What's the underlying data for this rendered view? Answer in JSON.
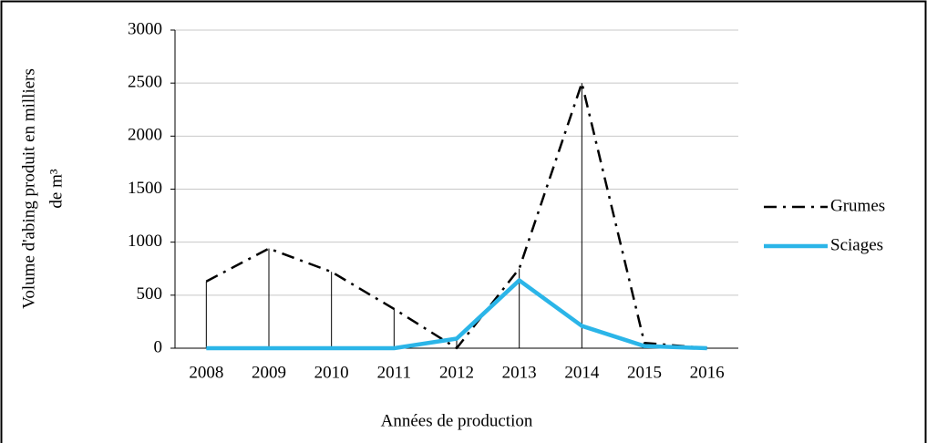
{
  "chart_data": {
    "type": "line",
    "y_label_lines": [
      "Volume d'abing produit en milliers",
      "de m³"
    ],
    "x_label": "Années de production",
    "categories": [
      "2008",
      "2009",
      "2010",
      "2011",
      "2012",
      "2013",
      "2014",
      "2015",
      "2016"
    ],
    "series": [
      {
        "name": "Grumes",
        "color": "#000000",
        "style": "dash-dot",
        "values": [
          630,
          940,
          720,
          370,
          0,
          750,
          2500,
          50,
          0
        ]
      },
      {
        "name": "Sciages",
        "color": "#2bb5e8",
        "style": "solid",
        "values": [
          0,
          0,
          0,
          0,
          90,
          640,
          210,
          20,
          0
        ]
      }
    ],
    "drop_lines": true,
    "ylim": [
      0,
      3000
    ],
    "yticks": [
      0,
      500,
      1000,
      1500,
      2000,
      2500,
      3000
    ],
    "grid": true,
    "legend": "right"
  }
}
